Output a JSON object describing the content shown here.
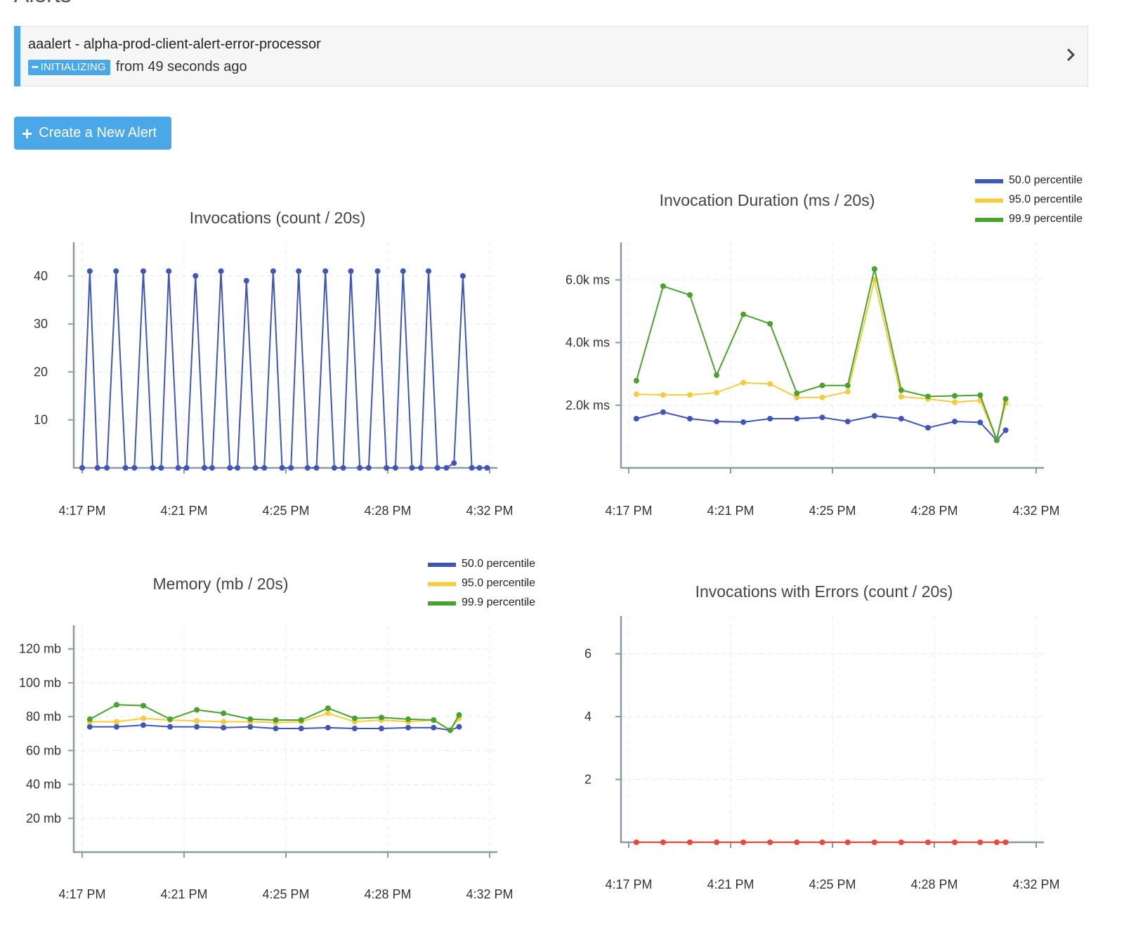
{
  "page": {
    "heading": "Alerts"
  },
  "alert": {
    "name": "aaalert - alpha-prod-client-alert-error-processor",
    "status_label": "INITIALIZING",
    "since": "from 49 seconds ago",
    "status_color": "#4aa8e8"
  },
  "create_button": {
    "label": "Create a New Alert",
    "icon": "plus-icon",
    "color": "#4aa8e8"
  },
  "colors": {
    "p50": "#3f56b8",
    "p95": "#f5cc3f",
    "p999": "#4aa22e",
    "errors": "#e8493a",
    "axis": "#8a9aa3"
  },
  "chart_data": [
    {
      "type": "line",
      "title": "Invocations (count / 20s)",
      "x_ticks": [
        "4:17 PM",
        "4:21 PM",
        "4:25 PM",
        "4:28 PM",
        "4:32 PM"
      ],
      "y_ticks": [
        "10",
        "20",
        "30",
        "40"
      ],
      "ylim": [
        0,
        47
      ],
      "xlim": [
        0,
        16
      ],
      "grid": true,
      "legend": "none",
      "series": [
        {
          "color_key": "p50",
          "x": [
            0,
            0.3,
            0.6,
            0.97,
            1.33,
            1.7,
            2.05,
            2.4,
            2.77,
            3.1,
            3.4,
            3.77,
            4.1,
            4.45,
            4.8,
            5.1,
            5.45,
            5.8,
            6.1,
            6.45,
            6.8,
            7.15,
            7.5,
            7.85,
            8.2,
            8.5,
            8.85,
            9.2,
            9.55,
            9.9,
            10.25,
            10.55,
            10.9,
            11.25,
            11.6,
            11.95,
            12.3,
            12.6,
            12.95,
            13.3,
            13.6,
            13.95,
            14.3,
            14.6,
            14.95,
            15.3,
            15.6,
            15.9
          ],
          "y": [
            0,
            41,
            0,
            0,
            41,
            0,
            0,
            41,
            0,
            0,
            41,
            0,
            0,
            40,
            0,
            0,
            41,
            0,
            0,
            39,
            0,
            0,
            41,
            0,
            0,
            41,
            0,
            0,
            41,
            0,
            0,
            41,
            0,
            0,
            41,
            0,
            0,
            41,
            0,
            0,
            41,
            0,
            0,
            1,
            40,
            0,
            0,
            0
          ]
        }
      ]
    },
    {
      "type": "line",
      "title": "Invocation Duration (ms / 20s)",
      "x_ticks": [
        "4:17 PM",
        "4:21 PM",
        "4:25 PM",
        "4:28 PM",
        "4:32 PM"
      ],
      "y_ticks": [
        "2.0k ms",
        "4.0k ms",
        "6.0k ms"
      ],
      "ylim": [
        0,
        7200
      ],
      "xlim": [
        0,
        16
      ],
      "grid": true,
      "legend": "top-right",
      "series": [
        {
          "name": "50.0 percentile",
          "color_key": "p50",
          "x": [
            0.3,
            1.35,
            2.4,
            3.45,
            4.5,
            5.55,
            6.6,
            7.6,
            8.6,
            9.65,
            10.7,
            11.75,
            12.8,
            13.8,
            14.45,
            14.8
          ],
          "y": [
            1570,
            1780,
            1570,
            1480,
            1460,
            1570,
            1570,
            1610,
            1480,
            1660,
            1570,
            1280,
            1480,
            1450,
            880,
            1200
          ]
        },
        {
          "name": "95.0 percentile",
          "color_key": "p95",
          "x": [
            0.3,
            1.35,
            2.4,
            3.45,
            4.5,
            5.55,
            6.6,
            7.6,
            8.6,
            9.65,
            10.7,
            11.75,
            12.8,
            13.8,
            14.45,
            14.8
          ],
          "y": [
            2350,
            2330,
            2330,
            2400,
            2720,
            2680,
            2250,
            2250,
            2430,
            6000,
            2270,
            2200,
            2100,
            2150,
            900,
            2050
          ]
        },
        {
          "name": "99.9 percentile",
          "color_key": "p999",
          "x": [
            0.3,
            1.35,
            2.4,
            3.45,
            4.5,
            5.55,
            6.6,
            7.6,
            8.6,
            9.65,
            10.7,
            11.75,
            12.8,
            13.8,
            14.45,
            14.8
          ],
          "y": [
            2780,
            5800,
            5520,
            2960,
            4900,
            4600,
            2380,
            2630,
            2630,
            6350,
            2480,
            2280,
            2300,
            2320,
            900,
            2200
          ]
        }
      ]
    },
    {
      "type": "line",
      "title": "Memory (mb / 20s)",
      "x_ticks": [
        "4:17 PM",
        "4:21 PM",
        "4:25 PM",
        "4:28 PM",
        "4:32 PM"
      ],
      "y_ticks": [
        "20 mb",
        "40 mb",
        "60 mb",
        "80 mb",
        "100 mb",
        "120 mb"
      ],
      "ylim": [
        0,
        134
      ],
      "xlim": [
        0,
        16
      ],
      "grid": true,
      "legend": "top-right",
      "series": [
        {
          "name": "50.0 percentile",
          "color_key": "p50",
          "x": [
            0.3,
            1.35,
            2.4,
            3.45,
            4.5,
            5.55,
            6.6,
            7.6,
            8.6,
            9.65,
            10.7,
            11.75,
            12.8,
            13.8,
            14.45,
            14.8
          ],
          "y": [
            74,
            74,
            75,
            74,
            74,
            73.5,
            74,
            73,
            73,
            73.5,
            73,
            73,
            73.5,
            73.5,
            72,
            74
          ]
        },
        {
          "name": "95.0 percentile",
          "color_key": "p95",
          "x": [
            0.3,
            1.35,
            2.4,
            3.45,
            4.5,
            5.55,
            6.6,
            7.6,
            8.6,
            9.65,
            10.7,
            11.75,
            12.8,
            13.8,
            14.45,
            14.8
          ],
          "y": [
            77,
            77,
            79,
            78,
            77.5,
            77,
            77,
            76.5,
            77,
            82,
            77,
            78,
            77,
            78,
            72,
            79
          ]
        },
        {
          "name": "99.9 percentile",
          "color_key": "p999",
          "x": [
            0.3,
            1.35,
            2.4,
            3.45,
            4.5,
            5.55,
            6.6,
            7.6,
            8.6,
            9.65,
            10.7,
            11.75,
            12.8,
            13.8,
            14.45,
            14.8
          ],
          "y": [
            78.5,
            87,
            86.5,
            78.5,
            84,
            82,
            78.5,
            78,
            78,
            85,
            79,
            79.5,
            78.5,
            78,
            72,
            81
          ]
        }
      ]
    },
    {
      "type": "line",
      "title": "Invocations with Errors (count / 20s)",
      "x_ticks": [
        "4:17 PM",
        "4:21 PM",
        "4:25 PM",
        "4:28 PM",
        "4:32 PM"
      ],
      "y_ticks": [
        "2",
        "4",
        "6"
      ],
      "ylim": [
        0,
        7.2
      ],
      "xlim": [
        0,
        16
      ],
      "grid": true,
      "legend": "none",
      "series": [
        {
          "color_key": "errors",
          "x": [
            0.3,
            1.35,
            2.4,
            3.45,
            4.5,
            5.55,
            6.6,
            7.6,
            8.6,
            9.65,
            10.7,
            11.75,
            12.8,
            13.8,
            14.45,
            14.8
          ],
          "y": [
            0,
            0,
            0,
            0,
            0,
            0,
            0,
            0,
            0,
            0,
            0,
            0,
            0,
            0,
            0,
            0
          ]
        }
      ]
    }
  ]
}
